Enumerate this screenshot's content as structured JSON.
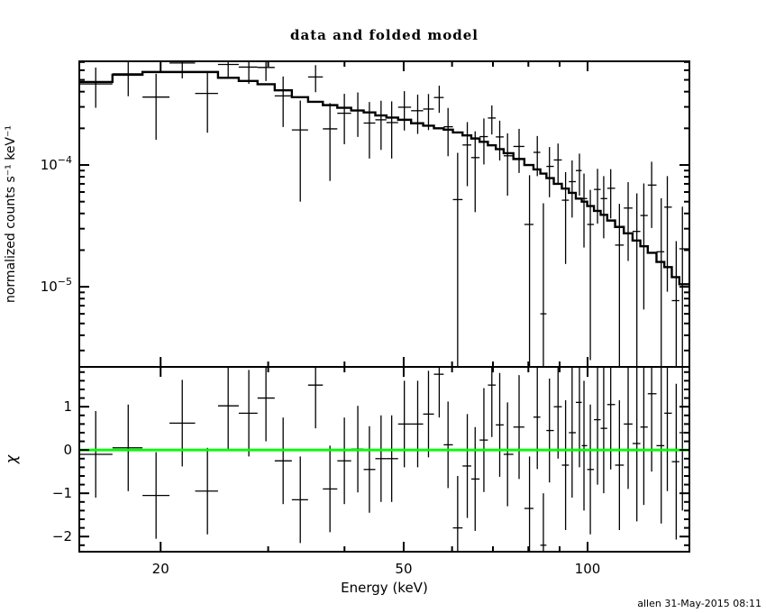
{
  "title": "data and folded model",
  "footer": "allen 31-May-2015 08:11",
  "colors": {
    "foreground": "#000000",
    "background": "#ffffff",
    "zero_line": "#00ff00"
  },
  "chart_data": [
    {
      "type": "line",
      "title": "data and folded model",
      "xlabel": "Energy (keV)",
      "ylabel": "normalized counts s⁻¹ keV⁻¹",
      "xscale": "log",
      "yscale": "log",
      "xlim": [
        14.72,
        146.8
      ],
      "ylim": [
        2.2e-06,
        0.00071
      ],
      "x_major_ticks": [
        20,
        50,
        100
      ],
      "x_minor_ticks": [
        30,
        40,
        60,
        70,
        80,
        90
      ],
      "y_tick_exponents": [
        -4,
        -5
      ],
      "grid": false,
      "legend": false,
      "bin_edges": [
        14.72,
        16.68,
        18.68,
        20.68,
        22.78,
        24.83,
        26.85,
        28.82,
        30.75,
        32.8,
        34.87,
        36.87,
        38.93,
        41.02,
        43.0,
        44.93,
        46.85,
        48.96,
        51.42,
        53.81,
        56.04,
        58.14,
        60.19,
        62.42,
        64.51,
        66.56,
        68.68,
        70.76,
        72.89,
        75.61,
        78.8,
        81.55,
        83.7,
        85.64,
        88.05,
        90.76,
        93.2,
        95.67,
        97.83,
        99.86,
        102.44,
        105.06,
        107.7,
        110.94,
        114.65,
        118.48,
        122.02,
        125.48,
        129.67,
        133.55,
        137.38,
        141.33,
        146.8
      ],
      "series": [
        {
          "name": "data",
          "marker": "cross-errorbar",
          "color": "#000000",
          "x": [
            15.66,
            17.7,
            19.66,
            21.7,
            23.86,
            25.8,
            27.89,
            29.75,
            31.74,
            33.86,
            35.87,
            37.87,
            39.98,
            42.06,
            43.94,
            45.91,
            47.79,
            50.12,
            52.71,
            54.9,
            57.17,
            59.1,
            61.28,
            63.55,
            65.46,
            67.65,
            69.71,
            71.81,
            73.96,
            77.25,
            80.35,
            82.74,
            84.66,
            86.62,
            89.47,
            92.05,
            94.34,
            96.99,
            98.66,
            101.05,
            103.83,
            106.28,
            109.12,
            112.76,
            116.53,
            120.42,
            123.62,
            127.33,
            132.01,
            135.08,
            139.68,
            142.98
          ],
          "y": [
            0.000463,
            0.00056,
            0.000361,
            0.000688,
            0.000387,
            0.000669,
            0.000636,
            0.000632,
            0.000369,
            0.000194,
            0.000528,
            0.000198,
            0.000266,
            0.000282,
            0.000221,
            0.000235,
            0.000223,
            0.000298,
            0.000279,
            0.000288,
            0.000358,
            0.000206,
            5.2e-05,
            0.000146,
            0.000115,
            0.000171,
            0.000243,
            0.00017,
            0.000119,
            0.000142,
            3.25e-05,
            0.000127,
            6e-06,
            9.74e-05,
            0.00011,
            5.14e-05,
            7.3e-05,
            9e-05,
            5.3e-05,
            3.25e-05,
            6.3e-05,
            5.3e-05,
            6.44e-05,
            2.2e-05,
            4.43e-05,
            2.85e-05,
            3.85e-05,
            6.84e-05,
            1.94e-05,
            4.51e-05,
            7.7e-06,
            2.05e-05
          ],
          "yerr": [
            0.000168,
            0.000193,
            0.0002,
            0.000174,
            0.000203,
            0.000146,
            0.000172,
            0.000143,
            0.000164,
            0.000144,
            0.000132,
            0.000124,
            0.000118,
            0.000112,
            0.000108,
            0.000102,
            0.00011,
            0.000106,
            9.9e-05,
            9.45e-05,
            9e-05,
            8.8e-05,
            7.4e-05,
            7.9e-05,
            7.4e-05,
            7e-05,
            6.5e-05,
            6.1e-05,
            6.3e-05,
            5.6e-05,
            5e-05,
            4.6e-05,
            4.25e-05,
            4.3e-05,
            4e-05,
            3.6e-05,
            3.6e-05,
            3.4e-05,
            3.2e-05,
            3e-05,
            3e-05,
            2.8e-05,
            2.8e-05,
            2.6e-05,
            2.8e-05,
            3e-05,
            3.2e-05,
            3.8e-05,
            3.4e-05,
            3.6e-05,
            1.6e-05,
            2.5e-05
          ]
        },
        {
          "name": "folded model",
          "marker": "step-histogram",
          "color": "#000000",
          "y": [
            0.00048,
            0.00055,
            0.00058,
            0.00058,
            0.00058,
            0.00052,
            0.00049,
            0.00046,
            0.00041,
            0.00036,
            0.00033,
            0.00031,
            0.000295,
            0.00028,
            0.00027,
            0.000255,
            0.000245,
            0.000235,
            0.00022,
            0.00021,
            0.0002,
            0.000195,
            0.000185,
            0.000175,
            0.000165,
            0.000155,
            0.000145,
            0.000135,
            0.000125,
            0.000112,
            0.0001,
            9.2e-05,
            8.5e-05,
            7.8e-05,
            7e-05,
            6.4e-05,
            5.9e-05,
            5.3e-05,
            5e-05,
            4.6e-05,
            4.2e-05,
            3.9e-05,
            3.5e-05,
            3.1e-05,
            2.75e-05,
            2.4e-05,
            2.15e-05,
            1.9e-05,
            1.6e-05,
            1.45e-05,
            1.2e-05,
            1.05e-05
          ]
        }
      ]
    },
    {
      "type": "scatter",
      "ylabel": "χ",
      "xscale": "log",
      "yscale": "linear",
      "ylim": [
        -2.35,
        1.92
      ],
      "y_major_ticks": [
        -2,
        -1,
        0,
        1
      ],
      "y_minor_step": 0.2,
      "series": [
        {
          "name": "chi residuals",
          "marker": "cross-errorbar",
          "color": "#000000",
          "y": [
            -0.1,
            0.05,
            -1.05,
            0.62,
            -0.95,
            1.02,
            0.85,
            1.2,
            -0.25,
            -1.15,
            1.5,
            -0.9,
            -0.25,
            0.02,
            -0.45,
            -0.2,
            -0.2,
            0.6,
            0.6,
            0.83,
            1.75,
            0.12,
            -1.8,
            -0.37,
            -0.67,
            0.23,
            1.5,
            0.58,
            -0.1,
            0.53,
            -1.35,
            0.76,
            -2.2,
            0.45,
            1.0,
            -0.35,
            0.4,
            1.1,
            0.1,
            -0.45,
            0.7,
            0.5,
            1.05,
            -0.35,
            0.6,
            0.15,
            0.53,
            1.3,
            0.1,
            0.85,
            -0.27,
            0.4
          ],
          "yerr": [
            1,
            1,
            1,
            1,
            1,
            1,
            1,
            1,
            1,
            1,
            1,
            1,
            1,
            1,
            1,
            1,
            1,
            1,
            1,
            1,
            1,
            1,
            1.2,
            1.2,
            1.2,
            1.2,
            1.2,
            1.2,
            1.2,
            1.2,
            1.2,
            1.2,
            1.2,
            1.2,
            1.2,
            1.5,
            1.5,
            1.5,
            1.5,
            1.5,
            1.5,
            1.5,
            1.5,
            1.5,
            1.5,
            1.8,
            1.8,
            1.8,
            1.8,
            1.8,
            1.8,
            1.8
          ]
        },
        {
          "name": "zero line",
          "y0": 0,
          "color": "#00ff00"
        }
      ]
    }
  ]
}
